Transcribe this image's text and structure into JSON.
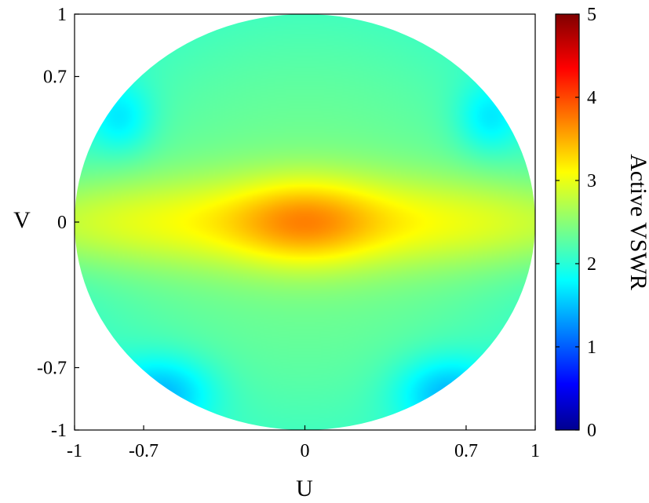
{
  "chart_data": {
    "type": "heatmap",
    "title": "",
    "xlabel": "U",
    "ylabel": "V",
    "xlim": [
      -1,
      1
    ],
    "ylim": [
      -1,
      1
    ],
    "x_ticks": [
      -1,
      -0.7,
      0,
      0.7,
      1
    ],
    "x_tick_labels": [
      "-1",
      "-0.7",
      "0",
      "0.7",
      "1"
    ],
    "y_ticks": [
      -1,
      -0.7,
      0,
      0.7,
      1
    ],
    "y_tick_labels": [
      "-1",
      "-0.7",
      "0",
      "0.7",
      "1"
    ],
    "grid": false,
    "domain": "unit circle U^2 + V^2 <= 1",
    "colormap": "jet",
    "colorbar": {
      "label": "Active VSWR",
      "range": [
        0,
        5
      ],
      "ticks": [
        0,
        1,
        2,
        3,
        4,
        5
      ],
      "tick_labels": [
        "0",
        "1",
        "2",
        "3",
        "4",
        "5"
      ],
      "placement": "right"
    },
    "value_features": [
      {
        "description": "peak at center",
        "u": 0.0,
        "v": 0.0,
        "value": 3.7
      },
      {
        "description": "ridge along V=0",
        "u": 0.7,
        "v": 0.0,
        "value": 3.0
      },
      {
        "description": "ridge along V=0",
        "u": -0.7,
        "v": 0.0,
        "value": 3.0
      },
      {
        "description": "minimum",
        "u": -0.8,
        "v": 0.5,
        "value": 1.7
      },
      {
        "description": "minimum",
        "u": 0.8,
        "v": 0.5,
        "value": 1.7
      },
      {
        "description": "minimum",
        "u": -0.6,
        "v": -0.8,
        "value": 1.5
      },
      {
        "description": "minimum",
        "u": 0.6,
        "v": -0.8,
        "value": 1.5
      },
      {
        "description": "edge level",
        "u": 0.0,
        "v": 1.0,
        "value": 2.2
      },
      {
        "description": "edge level",
        "u": 0.0,
        "v": -1.0,
        "value": 2.2
      }
    ]
  }
}
